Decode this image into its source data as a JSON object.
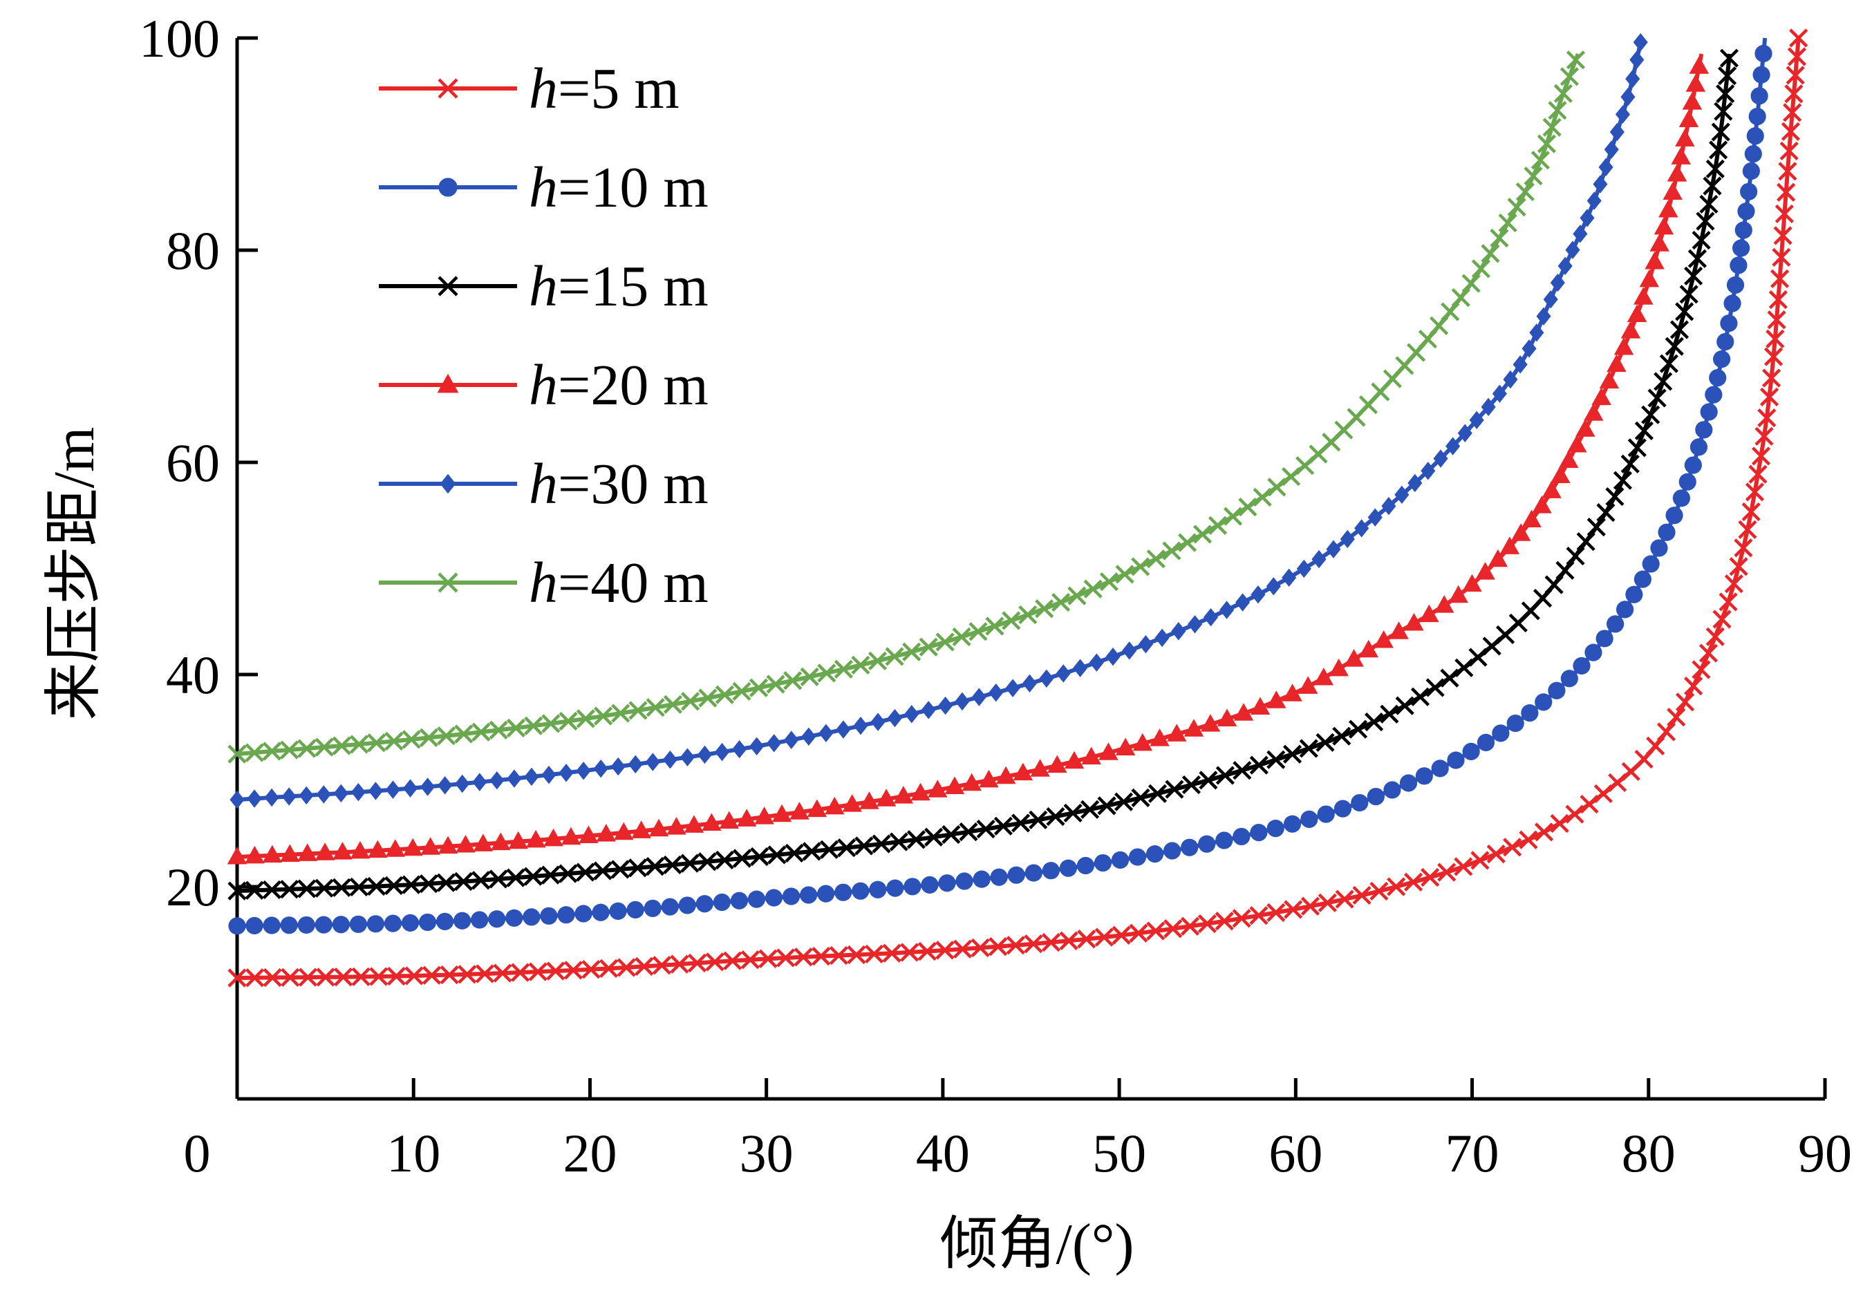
{
  "chart_data": {
    "type": "line",
    "xlabel": "倾角/(°)",
    "ylabel": "来压步距/m",
    "xlim": [
      0,
      90
    ],
    "ylim": [
      0,
      100
    ],
    "xticks": [
      0,
      10,
      20,
      30,
      40,
      50,
      60,
      70,
      80,
      90
    ],
    "yticks": [
      20,
      40,
      60,
      80,
      100
    ],
    "x_tick_labels": [
      "0",
      "10",
      "20",
      "30",
      "40",
      "50",
      "60",
      "70",
      "80",
      "90"
    ],
    "y_tick_labels": [
      "20",
      "40",
      "60",
      "80",
      "100"
    ],
    "grid": false,
    "legend_position": "top-left",
    "series": [
      {
        "name": "h=5 m",
        "h_italic": "h",
        "name_rest": "=5 m",
        "color": "#e8262a",
        "marker": "x",
        "x": [
          0,
          10,
          20,
          30,
          40,
          50,
          60,
          65,
          70,
          75,
          78,
          80,
          82,
          84,
          85,
          86,
          87,
          88,
          88.5
        ],
        "y": [
          11.4,
          11.6,
          12.2,
          13.2,
          14.0,
          15.4,
          17.9,
          19.7,
          22.2,
          26.0,
          29.5,
          32.5,
          37.2,
          44.5,
          49.5,
          57.0,
          68.5,
          90.0,
          100
        ]
      },
      {
        "name": "h=10 m",
        "h_italic": "h",
        "name_rest": "=10 m",
        "color": "#2a52b8",
        "marker": "circle",
        "x": [
          0,
          10,
          20,
          30,
          40,
          50,
          60,
          65,
          70,
          75,
          78,
          80,
          82,
          83,
          84,
          85,
          86,
          86.6
        ],
        "y": [
          16.3,
          16.6,
          17.5,
          18.9,
          20.3,
          22.5,
          26.0,
          28.8,
          32.8,
          38.8,
          44.5,
          50.0,
          57.2,
          62.3,
          68.6,
          77.5,
          90.0,
          100
        ]
      },
      {
        "name": "h=15 m",
        "h_italic": "h",
        "name_rest": "=15 m",
        "color": "#000000",
        "marker": "x",
        "x": [
          0,
          10,
          20,
          30,
          40,
          50,
          60,
          65,
          70,
          74,
          76,
          78,
          80,
          81,
          82,
          83,
          84,
          84.6
        ],
        "y": [
          19.6,
          20.2,
          21.4,
          22.9,
          24.8,
          27.9,
          32.6,
          36.0,
          41.2,
          47.2,
          51.5,
          56.5,
          64.0,
          68.5,
          74.0,
          81.0,
          90.0,
          98.5
        ]
      },
      {
        "name": "h=20 m",
        "h_italic": "h",
        "name_rest": "=20 m",
        "color": "#e8262a",
        "marker": "triangle",
        "x": [
          0,
          10,
          20,
          30,
          40,
          50,
          60,
          65,
          70,
          74,
          76,
          78,
          80,
          81,
          82,
          83
        ],
        "y": [
          22.8,
          23.6,
          24.8,
          26.6,
          29.2,
          32.9,
          38.3,
          43.2,
          48.5,
          56.0,
          61.8,
          68.5,
          77.0,
          83.0,
          90.0,
          98.5
        ]
      },
      {
        "name": "h=30 m",
        "h_italic": "h",
        "name_rest": "=30 m",
        "color": "#2a52b8",
        "marker": "diamond",
        "x": [
          0,
          10,
          20,
          30,
          40,
          50,
          60,
          65,
          70,
          73,
          75,
          77,
          78,
          79,
          79.6
        ],
        "y": [
          28.2,
          29.3,
          31.0,
          33.4,
          37.0,
          41.9,
          49.5,
          55.5,
          63.5,
          70.0,
          77.5,
          85.0,
          90.0,
          95.5,
          100
        ]
      },
      {
        "name": "h=40 m",
        "h_italic": "h",
        "name_rest": "=40 m",
        "color": "#6aa84f",
        "marker": "x",
        "x": [
          0,
          10,
          20,
          30,
          40,
          50,
          60,
          65,
          70,
          72,
          74,
          75,
          76
        ],
        "y": [
          32.5,
          33.9,
          35.9,
          38.9,
          43.0,
          49.2,
          59.0,
          67.0,
          77.0,
          82.5,
          89.0,
          94.0,
          98.5
        ]
      }
    ]
  }
}
